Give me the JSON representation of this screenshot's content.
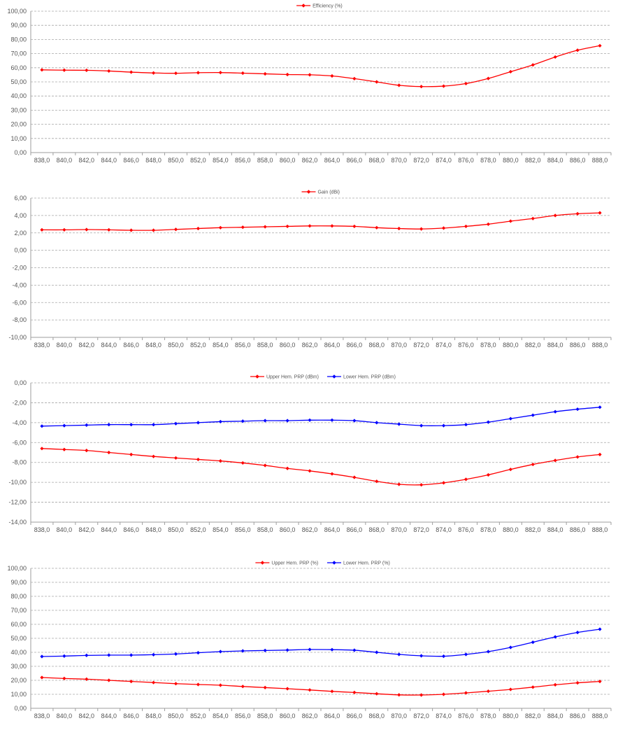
{
  "chart_data": [
    {
      "type": "line",
      "x": [
        "838,0",
        "840,0",
        "842,0",
        "844,0",
        "846,0",
        "848,0",
        "850,0",
        "852,0",
        "854,0",
        "856,0",
        "858,0",
        "860,0",
        "862,0",
        "864,0",
        "866,0",
        "868,0",
        "870,0",
        "872,0",
        "874,0",
        "876,0",
        "878,0",
        "880,0",
        "882,0",
        "884,0",
        "886,0",
        "888,0"
      ],
      "y_ticks": [
        "100,00",
        "90,00",
        "80,00",
        "70,00",
        "60,00",
        "50,00",
        "40,00",
        "30,00",
        "20,00",
        "10,00",
        "0,00"
      ],
      "ylim": [
        0,
        100
      ],
      "grid": true,
      "legend": "top-center",
      "series": [
        {
          "name": "Efficiency (%)",
          "color": "#ff0000",
          "values": [
            58.5,
            58.3,
            58.2,
            57.7,
            56.9,
            56.3,
            56.1,
            56.5,
            56.6,
            56.2,
            55.7,
            55.2,
            55.0,
            54.2,
            52.3,
            50.0,
            47.6,
            46.7,
            47.0,
            48.8,
            52.4,
            57.2,
            62.0,
            67.6,
            72.4,
            75.6
          ]
        }
      ]
    },
    {
      "type": "line",
      "x": [
        "838,0",
        "840,0",
        "842,0",
        "844,0",
        "846,0",
        "848,0",
        "850,0",
        "852,0",
        "854,0",
        "856,0",
        "858,0",
        "860,0",
        "862,0",
        "864,0",
        "866,0",
        "868,0",
        "870,0",
        "872,0",
        "874,0",
        "876,0",
        "878,0",
        "880,0",
        "882,0",
        "884,0",
        "886,0",
        "888,0"
      ],
      "y_ticks": [
        "6,00",
        "4,00",
        "2,00",
        "0,00",
        "-2,00",
        "-4,00",
        "-6,00",
        "-8,00",
        "-10,00"
      ],
      "ylim": [
        -10,
        6
      ],
      "grid": true,
      "legend": "top-center",
      "series": [
        {
          "name": "Gain (dBi)",
          "color": "#ff0000",
          "values": [
            2.35,
            2.35,
            2.38,
            2.35,
            2.3,
            2.3,
            2.4,
            2.5,
            2.6,
            2.65,
            2.7,
            2.75,
            2.8,
            2.8,
            2.75,
            2.6,
            2.5,
            2.45,
            2.55,
            2.75,
            3.0,
            3.35,
            3.65,
            4.0,
            4.2,
            4.3
          ]
        }
      ]
    },
    {
      "type": "line",
      "x": [
        "838,0",
        "840,0",
        "842,0",
        "844,0",
        "846,0",
        "848,0",
        "850,0",
        "852,0",
        "854,0",
        "856,0",
        "858,0",
        "860,0",
        "862,0",
        "864,0",
        "866,0",
        "868,0",
        "870,0",
        "872,0",
        "874,0",
        "876,0",
        "878,0",
        "880,0",
        "882,0",
        "884,0",
        "886,0",
        "888,0"
      ],
      "y_ticks": [
        "0,00",
        "-2,00",
        "-4,00",
        "-6,00",
        "-8,00",
        "-10,00",
        "-12,00",
        "-14,00"
      ],
      "ylim": [
        -14,
        0
      ],
      "grid": true,
      "legend": "top-center",
      "series": [
        {
          "name": "Upper Hem. PRP (dBm)",
          "color": "#ff0000",
          "values": [
            -6.6,
            -6.7,
            -6.8,
            -7.0,
            -7.2,
            -7.4,
            -7.55,
            -7.7,
            -7.85,
            -8.05,
            -8.3,
            -8.6,
            -8.85,
            -9.15,
            -9.5,
            -9.9,
            -10.2,
            -10.25,
            -10.05,
            -9.7,
            -9.25,
            -8.7,
            -8.2,
            -7.8,
            -7.45,
            -7.2
          ]
        },
        {
          "name": "Lower Hem. PRP (dBm)",
          "color": "#0000ff",
          "values": [
            -4.35,
            -4.3,
            -4.25,
            -4.2,
            -4.2,
            -4.2,
            -4.1,
            -4.0,
            -3.9,
            -3.85,
            -3.8,
            -3.8,
            -3.75,
            -3.75,
            -3.8,
            -4.0,
            -4.15,
            -4.3,
            -4.3,
            -4.2,
            -3.95,
            -3.6,
            -3.25,
            -2.9,
            -2.65,
            -2.45
          ]
        }
      ]
    },
    {
      "type": "line",
      "x": [
        "838,0",
        "840,0",
        "842,0",
        "844,0",
        "846,0",
        "848,0",
        "850,0",
        "852,0",
        "854,0",
        "856,0",
        "858,0",
        "860,0",
        "862,0",
        "864,0",
        "866,0",
        "868,0",
        "870,0",
        "872,0",
        "874,0",
        "876,0",
        "878,0",
        "880,0",
        "882,0",
        "884,0",
        "886,0",
        "888,0"
      ],
      "y_ticks": [
        "100,00",
        "90,00",
        "80,00",
        "70,00",
        "60,00",
        "50,00",
        "40,00",
        "30,00",
        "20,00",
        "10,00",
        "0,00"
      ],
      "ylim": [
        0,
        100
      ],
      "grid": true,
      "legend": "top-center",
      "series": [
        {
          "name": "Upper Hem. PRP (%)",
          "color": "#ff0000",
          "values": [
            22.0,
            21.3,
            20.8,
            20.0,
            19.2,
            18.4,
            17.6,
            17.0,
            16.5,
            15.6,
            14.8,
            14.0,
            13.1,
            12.1,
            11.3,
            10.4,
            9.6,
            9.5,
            10.0,
            11.0,
            12.2,
            13.5,
            15.1,
            16.8,
            18.2,
            19.2
          ]
        },
        {
          "name": "Lower Hem. PRP (%)",
          "color": "#0000ff",
          "values": [
            37.0,
            37.3,
            37.8,
            38.0,
            38.0,
            38.3,
            38.8,
            39.7,
            40.5,
            41.0,
            41.3,
            41.6,
            42.0,
            41.9,
            41.5,
            40.0,
            38.5,
            37.5,
            37.2,
            38.5,
            40.5,
            43.5,
            47.2,
            51.0,
            54.2,
            56.5
          ]
        }
      ]
    }
  ]
}
